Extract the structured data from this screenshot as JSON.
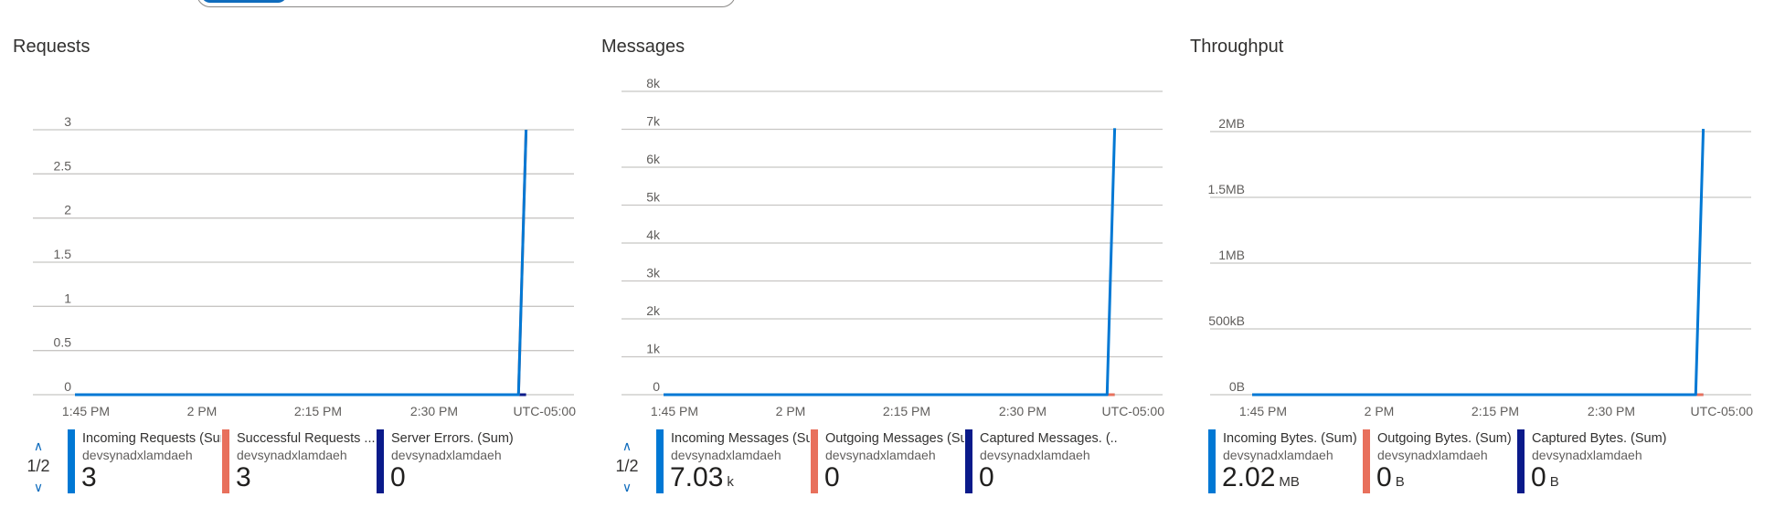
{
  "colors": {
    "blue": "#0078d4",
    "salmon": "#e8705c",
    "navy": "#0a1a8a",
    "teal": "#0fa3a3",
    "grid": "#c8c6c4",
    "accent": "#0f6cbd"
  },
  "icons": {
    "pager_up": "chevron-up-icon",
    "pager_down": "chevron-down-icon"
  },
  "chart_data": [
    {
      "type": "line",
      "title": "Requests",
      "x_ticks": [
        "1:45 PM",
        "2 PM",
        "2:15 PM",
        "2:30 PM"
      ],
      "timezone_label": "UTC-05:00",
      "y_ticks": [
        "0",
        "0.5",
        "1",
        "1.5",
        "2",
        "2.5",
        "3"
      ],
      "ylim": [
        0,
        3
      ],
      "xlim": [
        0,
        60
      ],
      "grid": true,
      "legend_position": "bottom",
      "series": [
        {
          "name": "Incoming Requests (Sum)",
          "color": "#0078d4",
          "x": [
            0,
            58,
            59
          ],
          "y": [
            0,
            0,
            3
          ]
        },
        {
          "name": "Successful Requests ...",
          "color": "#e8705c",
          "x": [
            0,
            58,
            59
          ],
          "y": [
            0,
            0,
            3
          ]
        },
        {
          "name": "Server Errors. (Sum)",
          "color": "#0a1a8a",
          "x": [
            0,
            59
          ],
          "y": [
            0,
            0
          ]
        }
      ],
      "pager": {
        "text": "1/2"
      },
      "legend": [
        {
          "name": "Incoming Requests (Sum)",
          "resource": "devsynadxlamdaeh",
          "value": "3",
          "unit": "",
          "color": "#0078d4"
        },
        {
          "name": "Successful Requests ...",
          "resource": "devsynadxlamdaeh",
          "value": "3",
          "unit": "",
          "color": "#e8705c"
        },
        {
          "name": "Server Errors. (Sum)",
          "resource": "devsynadxlamdaeh",
          "value": "0",
          "unit": "",
          "color": "#0a1a8a"
        }
      ]
    },
    {
      "type": "line",
      "title": "Messages",
      "x_ticks": [
        "1:45 PM",
        "2 PM",
        "2:15 PM",
        "2:30 PM"
      ],
      "timezone_label": "UTC-05:00",
      "y_ticks": [
        "0",
        "1k",
        "2k",
        "3k",
        "4k",
        "5k",
        "6k",
        "7k",
        "8k"
      ],
      "ylim": [
        0,
        8000
      ],
      "xlim": [
        0,
        60
      ],
      "grid": true,
      "legend_position": "bottom",
      "series": [
        {
          "name": "Incoming Messages (Sum)",
          "color": "#0078d4",
          "x": [
            0,
            58,
            59
          ],
          "y": [
            0,
            0,
            7030
          ]
        },
        {
          "name": "Outgoing Messages (Sum)",
          "color": "#e8705c",
          "x": [
            0,
            59
          ],
          "y": [
            0,
            0
          ]
        },
        {
          "name": "Captured Messages. (...",
          "color": "#0fa3a3",
          "x": [
            0,
            59
          ],
          "y": [
            0,
            0
          ]
        }
      ],
      "pager": {
        "text": "1/2"
      },
      "legend": [
        {
          "name": "Incoming Messages (Sum)",
          "resource": "devsynadxlamdaeh",
          "value": "7.03",
          "unit": "k",
          "color": "#0078d4"
        },
        {
          "name": "Outgoing Messages (Sum)",
          "resource": "devsynadxlamdaeh",
          "value": "0",
          "unit": "",
          "color": "#e8705c"
        },
        {
          "name": "Captured Messages. (...",
          "resource": "devsynadxlamdaeh",
          "value": "0",
          "unit": "",
          "color": "#0a1a8a"
        }
      ]
    },
    {
      "type": "line",
      "title": "Throughput",
      "x_ticks": [
        "1:45 PM",
        "2 PM",
        "2:15 PM",
        "2:30 PM"
      ],
      "timezone_label": "UTC-05:00",
      "y_ticks": [
        "0B",
        "500kB",
        "1MB",
        "1.5MB",
        "2MB"
      ],
      "ylim": [
        0,
        2
      ],
      "xlim": [
        0,
        60
      ],
      "grid": true,
      "legend_position": "bottom",
      "series": [
        {
          "name": "Incoming Bytes. (Sum)",
          "color": "#0078d4",
          "x": [
            0,
            58,
            59
          ],
          "y": [
            0,
            0,
            2.02
          ]
        },
        {
          "name": "Outgoing Bytes. (Sum)",
          "color": "#e8705c",
          "x": [
            0,
            59
          ],
          "y": [
            0,
            0
          ]
        },
        {
          "name": "Captured Bytes. (Sum)",
          "color": "#0a1a8a",
          "x": [
            0,
            59
          ],
          "y": [
            0,
            0
          ]
        }
      ],
      "legend": [
        {
          "name": "Incoming Bytes. (Sum)",
          "resource": "devsynadxlamdaeh",
          "value": "2.02",
          "unit": "MB",
          "color": "#0078d4"
        },
        {
          "name": "Outgoing Bytes. (Sum)",
          "resource": "devsynadxlamdaeh",
          "value": "0",
          "unit": "B",
          "color": "#e8705c"
        },
        {
          "name": "Captured Bytes. (Sum)",
          "resource": "devsynadxlamdaeh",
          "value": "0",
          "unit": "B",
          "color": "#0a1a8a"
        }
      ]
    }
  ]
}
